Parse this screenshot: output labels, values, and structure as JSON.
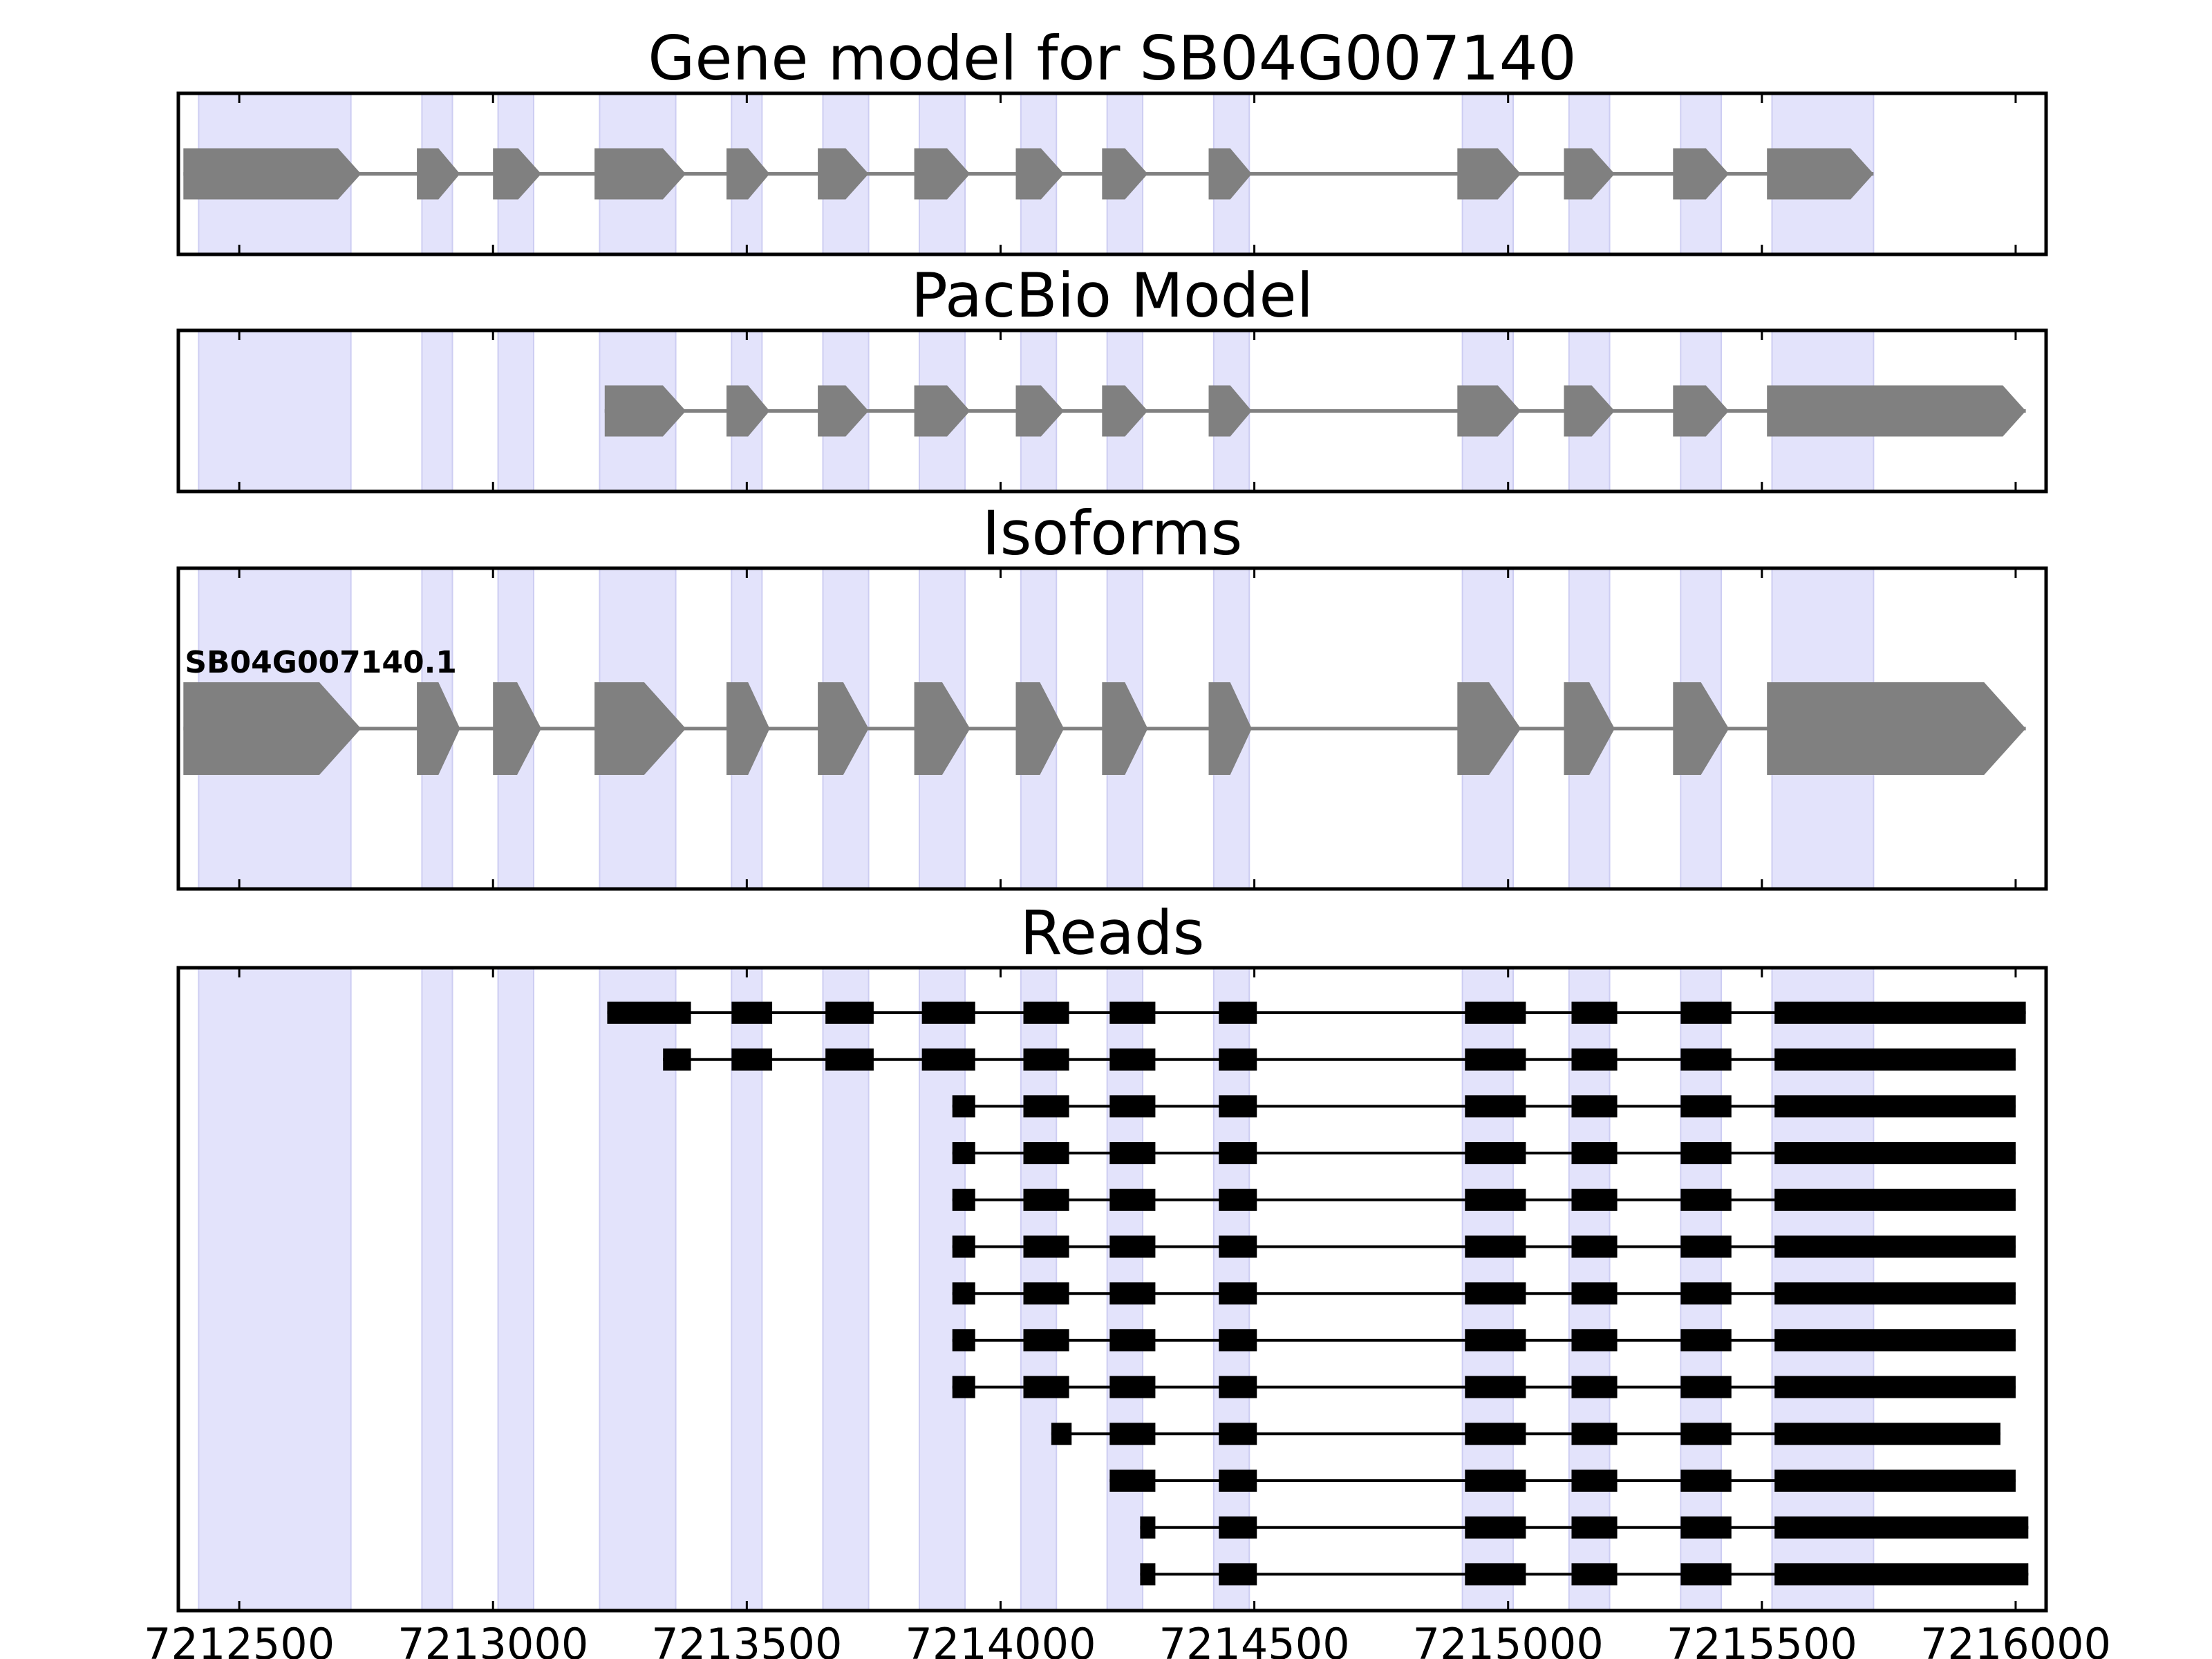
{
  "chart_data": {
    "type": "gene_structure_track",
    "gene_id": "SB04G007140",
    "x_axis": {
      "range": [
        7212380,
        7216060
      ],
      "ticks": [
        7212500,
        7213000,
        7213500,
        7214000,
        7214500,
        7215000,
        7215500,
        7216000
      ],
      "tick_labels": [
        "7212500",
        "7213000",
        "7213500",
        "7214000",
        "7214500",
        "7215000",
        "7215500",
        "7216000"
      ]
    },
    "highlight_exons": [
      [
        7212420,
        7212720
      ],
      [
        7212860,
        7212920
      ],
      [
        7213010,
        7213080
      ],
      [
        7213210,
        7213360
      ],
      [
        7213470,
        7213530
      ],
      [
        7213650,
        7213740
      ],
      [
        7213840,
        7213930
      ],
      [
        7214040,
        7214110
      ],
      [
        7214210,
        7214280
      ],
      [
        7214420,
        7214490
      ],
      [
        7214910,
        7215010
      ],
      [
        7215120,
        7215200
      ],
      [
        7215340,
        7215420
      ],
      [
        7215520,
        7215720
      ]
    ],
    "colors": {
      "highlight": "#e3e3fb",
      "model_exon": "#808080",
      "intron": "#808080",
      "read": "#000000"
    },
    "panels": [
      {
        "key": "gene_model",
        "title": "Gene model for SB04G007140",
        "style": "model",
        "tracks": [
          {
            "label": "",
            "exons": [
              [
                7212390,
                7212740
              ],
              [
                7212850,
                7212935
              ],
              [
                7213000,
                7213095
              ],
              [
                7213200,
                7213380
              ],
              [
                7213460,
                7213545
              ],
              [
                7213640,
                7213740
              ],
              [
                7213830,
                7213940
              ],
              [
                7214030,
                7214125
              ],
              [
                7214200,
                7214290
              ],
              [
                7214410,
                7214495
              ],
              [
                7214900,
                7215025
              ],
              [
                7215110,
                7215210
              ],
              [
                7215325,
                7215435
              ],
              [
                7215510,
                7215720
              ]
            ]
          }
        ]
      },
      {
        "key": "pacbio_model",
        "title": "PacBio Model",
        "style": "model",
        "tracks": [
          {
            "label": "",
            "exons": [
              [
                7213220,
                7213380
              ],
              [
                7213460,
                7213545
              ],
              [
                7213640,
                7213740
              ],
              [
                7213830,
                7213940
              ],
              [
                7214030,
                7214125
              ],
              [
                7214200,
                7214290
              ],
              [
                7214410,
                7214495
              ],
              [
                7214900,
                7215025
              ],
              [
                7215110,
                7215210
              ],
              [
                7215325,
                7215435
              ],
              [
                7215510,
                7216020
              ]
            ]
          }
        ]
      },
      {
        "key": "isoforms",
        "title": "Isoforms",
        "style": "model",
        "tracks": [
          {
            "label": "SB04G007140.1",
            "exons": [
              [
                7212390,
                7212740
              ],
              [
                7212850,
                7212935
              ],
              [
                7213000,
                7213095
              ],
              [
                7213200,
                7213380
              ],
              [
                7213460,
                7213545
              ],
              [
                7213640,
                7213740
              ],
              [
                7213830,
                7213940
              ],
              [
                7214030,
                7214125
              ],
              [
                7214200,
                7214290
              ],
              [
                7214410,
                7214495
              ],
              [
                7214900,
                7215025
              ],
              [
                7215110,
                7215210
              ],
              [
                7215325,
                7215435
              ],
              [
                7215510,
                7216020
              ]
            ]
          }
        ]
      },
      {
        "key": "reads",
        "title": "Reads",
        "style": "reads",
        "tracks": [
          {
            "label": "",
            "exons": [
              [
                7213225,
                7213390
              ],
              [
                7213470,
                7213550
              ],
              [
                7213655,
                7213750
              ],
              [
                7213845,
                7213950
              ],
              [
                7214045,
                7214135
              ],
              [
                7214215,
                7214305
              ],
              [
                7214430,
                7214505
              ],
              [
                7214915,
                7215035
              ],
              [
                7215125,
                7215215
              ],
              [
                7215340,
                7215440
              ],
              [
                7215525,
                7216020
              ]
            ]
          },
          {
            "label": "",
            "exons": [
              [
                7213335,
                7213390
              ],
              [
                7213470,
                7213550
              ],
              [
                7213655,
                7213750
              ],
              [
                7213845,
                7213950
              ],
              [
                7214045,
                7214135
              ],
              [
                7214215,
                7214305
              ],
              [
                7214430,
                7214505
              ],
              [
                7214915,
                7215035
              ],
              [
                7215125,
                7215215
              ],
              [
                7215340,
                7215440
              ],
              [
                7215525,
                7216000
              ]
            ]
          },
          {
            "label": "",
            "exons": [
              [
                7213905,
                7213950
              ],
              [
                7214045,
                7214135
              ],
              [
                7214215,
                7214305
              ],
              [
                7214430,
                7214505
              ],
              [
                7214915,
                7215035
              ],
              [
                7215125,
                7215215
              ],
              [
                7215340,
                7215440
              ],
              [
                7215525,
                7216000
              ]
            ]
          },
          {
            "label": "",
            "exons": [
              [
                7213905,
                7213950
              ],
              [
                7214045,
                7214135
              ],
              [
                7214215,
                7214305
              ],
              [
                7214430,
                7214505
              ],
              [
                7214915,
                7215035
              ],
              [
                7215125,
                7215215
              ],
              [
                7215340,
                7215440
              ],
              [
                7215525,
                7216000
              ]
            ]
          },
          {
            "label": "",
            "exons": [
              [
                7213905,
                7213950
              ],
              [
                7214045,
                7214135
              ],
              [
                7214215,
                7214305
              ],
              [
                7214430,
                7214505
              ],
              [
                7214915,
                7215035
              ],
              [
                7215125,
                7215215
              ],
              [
                7215340,
                7215440
              ],
              [
                7215525,
                7216000
              ]
            ]
          },
          {
            "label": "",
            "exons": [
              [
                7213905,
                7213950
              ],
              [
                7214045,
                7214135
              ],
              [
                7214215,
                7214305
              ],
              [
                7214430,
                7214505
              ],
              [
                7214915,
                7215035
              ],
              [
                7215125,
                7215215
              ],
              [
                7215340,
                7215440
              ],
              [
                7215525,
                7216000
              ]
            ]
          },
          {
            "label": "",
            "exons": [
              [
                7213905,
                7213950
              ],
              [
                7214045,
                7214135
              ],
              [
                7214215,
                7214305
              ],
              [
                7214430,
                7214505
              ],
              [
                7214915,
                7215035
              ],
              [
                7215125,
                7215215
              ],
              [
                7215340,
                7215440
              ],
              [
                7215525,
                7216000
              ]
            ]
          },
          {
            "label": "",
            "exons": [
              [
                7213905,
                7213950
              ],
              [
                7214045,
                7214135
              ],
              [
                7214215,
                7214305
              ],
              [
                7214430,
                7214505
              ],
              [
                7214915,
                7215035
              ],
              [
                7215125,
                7215215
              ],
              [
                7215340,
                7215440
              ],
              [
                7215525,
                7216000
              ]
            ]
          },
          {
            "label": "",
            "exons": [
              [
                7213905,
                7213950
              ],
              [
                7214045,
                7214135
              ],
              [
                7214215,
                7214305
              ],
              [
                7214430,
                7214505
              ],
              [
                7214915,
                7215035
              ],
              [
                7215125,
                7215215
              ],
              [
                7215340,
                7215440
              ],
              [
                7215525,
                7216000
              ]
            ]
          },
          {
            "label": "",
            "exons": [
              [
                7214100,
                7214140
              ],
              [
                7214215,
                7214305
              ],
              [
                7214430,
                7214505
              ],
              [
                7214915,
                7215035
              ],
              [
                7215125,
                7215215
              ],
              [
                7215340,
                7215440
              ],
              [
                7215525,
                7215970
              ]
            ]
          },
          {
            "label": "",
            "exons": [
              [
                7214215,
                7214305
              ],
              [
                7214430,
                7214505
              ],
              [
                7214915,
                7215035
              ],
              [
                7215125,
                7215215
              ],
              [
                7215340,
                7215440
              ],
              [
                7215525,
                7216000
              ]
            ]
          },
          {
            "label": "",
            "exons": [
              [
                7214275,
                7214305
              ],
              [
                7214430,
                7214505
              ],
              [
                7214915,
                7215035
              ],
              [
                7215125,
                7215215
              ],
              [
                7215340,
                7215440
              ],
              [
                7215525,
                7216025
              ]
            ]
          },
          {
            "label": "",
            "exons": [
              [
                7214275,
                7214305
              ],
              [
                7214430,
                7214505
              ],
              [
                7214915,
                7215035
              ],
              [
                7215125,
                7215215
              ],
              [
                7215340,
                7215440
              ],
              [
                7215525,
                7216025
              ]
            ]
          }
        ]
      }
    ]
  }
}
